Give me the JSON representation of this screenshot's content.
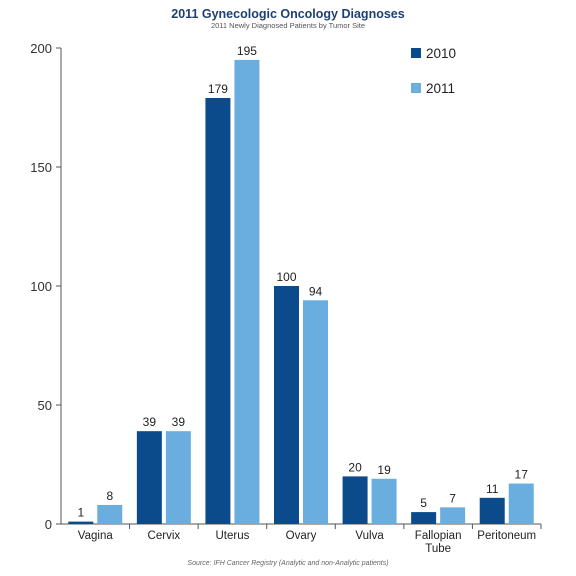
{
  "chart_data": {
    "type": "bar",
    "title": "2011 Gynecologic Oncology Diagnoses",
    "subtitle": "2011 Newly Diagnosed Patients by Tumor Site",
    "source": "Source: IFH Cancer Registry (Analytic and non-Analytic patients)",
    "categories": [
      [
        "Vagina"
      ],
      [
        "Cervix"
      ],
      [
        "Uterus"
      ],
      [
        "Ovary"
      ],
      [
        "Vulva"
      ],
      [
        "Fallopian",
        "Tube"
      ],
      [
        "Peritoneum"
      ]
    ],
    "series": [
      {
        "name": "2010",
        "color": "#0b4a8b",
        "values": [
          1,
          39,
          179,
          100,
          20,
          5,
          11
        ]
      },
      {
        "name": "2011",
        "color": "#6aaee0",
        "values": [
          8,
          39,
          195,
          94,
          19,
          7,
          17
        ]
      }
    ],
    "ylim": [
      0,
      200
    ],
    "yticks": [
      0,
      50,
      100,
      150,
      200
    ],
    "grid": false,
    "legend": "top-right"
  }
}
